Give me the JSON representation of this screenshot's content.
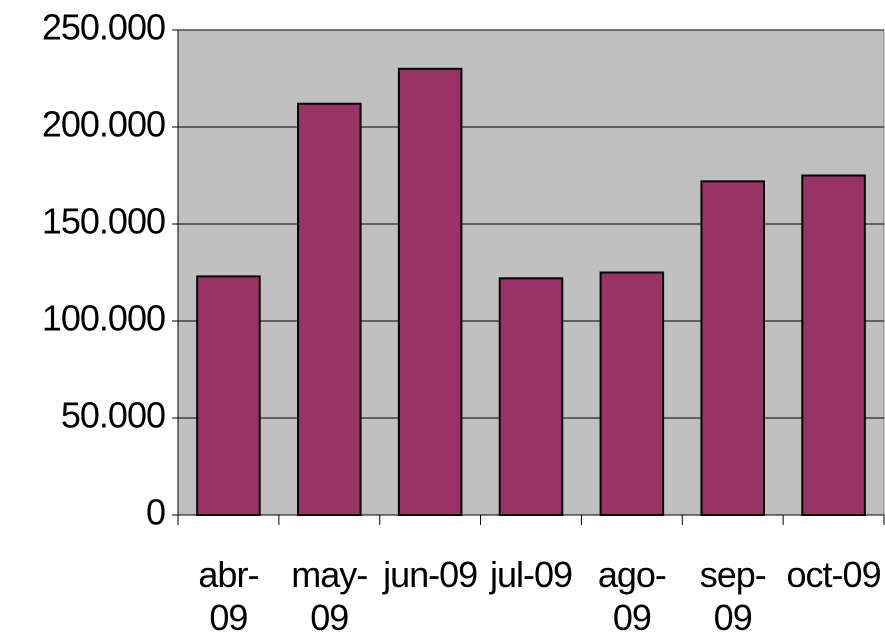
{
  "chart_data": {
    "type": "bar",
    "categories": [
      "abr-09",
      "may-09",
      "jun-09",
      "jul-09",
      "ago-09",
      "sep-09",
      "oct-09"
    ],
    "values": [
      123000,
      212000,
      230000,
      122000,
      125000,
      172000,
      175000
    ],
    "color": "#993366",
    "ylim": [
      0,
      250000
    ],
    "yticks": [
      0,
      {
        "value": 50000,
        "label": "50.000"
      },
      {
        "value": 100000,
        "label": "100.000"
      },
      {
        "value": 150000,
        "label": "150.000"
      },
      {
        "value": 200000,
        "label": "200.000"
      },
      {
        "value": 250000,
        "label": "250.000"
      }
    ],
    "grid": true
  }
}
